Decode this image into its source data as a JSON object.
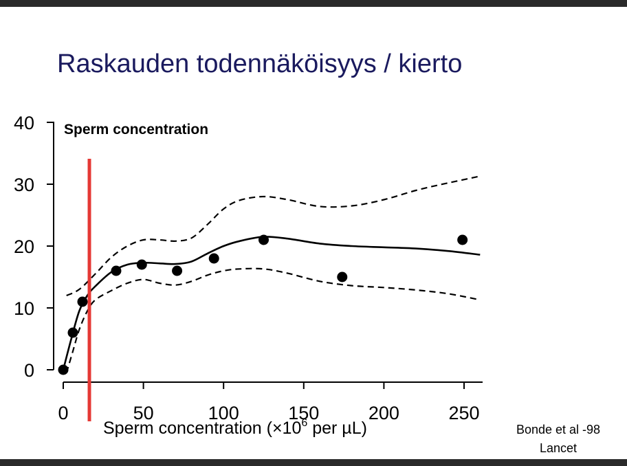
{
  "slide": {
    "title": "Raskauden todennäköisyys / kierto",
    "citation_line1": "Bonde et al -98",
    "citation_line2": "Lancet"
  },
  "chart_data": {
    "type": "scatter",
    "title": "Sperm concentration",
    "xlabel_main": "Sperm concentration (×10",
    "xlabel_sup": "6",
    "xlabel_tail": " per µL)",
    "ylabel": "",
    "xlim": [
      0,
      260
    ],
    "ylim": [
      0,
      40
    ],
    "x_ticks": [
      0,
      50,
      100,
      150,
      200,
      250
    ],
    "y_ticks": [
      0,
      10,
      20,
      30,
      40
    ],
    "grid": false,
    "series": [
      {
        "kind": "points",
        "x": [
          0,
          6,
          12,
          33,
          49,
          71,
          94,
          125,
          174,
          249
        ],
        "y": [
          0,
          6,
          11,
          16,
          17,
          16,
          18,
          21,
          15,
          21
        ],
        "color": "#000000"
      },
      {
        "kind": "fitted-curve",
        "x": [
          0,
          5,
          10,
          15,
          20,
          30,
          40,
          50,
          60,
          70,
          80,
          90,
          100,
          110,
          125,
          140,
          160,
          180,
          200,
          220,
          240,
          260
        ],
        "y": [
          0,
          5,
          9.5,
          12,
          13.5,
          15.8,
          17,
          17.3,
          17.2,
          17.1,
          17.5,
          18.8,
          20,
          20.8,
          21.5,
          21.2,
          20.4,
          20,
          19.8,
          19.6,
          19.2,
          18.6
        ],
        "color": "#000000",
        "style": "solid"
      },
      {
        "kind": "upper-ci",
        "x": [
          2,
          10,
          20,
          30,
          40,
          50,
          60,
          70,
          80,
          90,
          100,
          110,
          125,
          140,
          160,
          180,
          200,
          220,
          240,
          260
        ],
        "y": [
          12,
          13,
          15.5,
          18.2,
          20,
          21,
          21,
          20.8,
          21.3,
          23.5,
          26,
          27.4,
          28,
          27.5,
          26.4,
          26.5,
          27.5,
          29,
          30.2,
          31.3
        ],
        "color": "#000000",
        "style": "dashed"
      },
      {
        "kind": "lower-ci",
        "x": [
          2,
          6,
          10,
          15,
          20,
          30,
          40,
          50,
          60,
          70,
          80,
          90,
          100,
          110,
          125,
          140,
          160,
          180,
          200,
          220,
          240,
          260
        ],
        "y": [
          -0.5,
          3,
          6.5,
          9.5,
          11.3,
          12.8,
          14,
          14.6,
          14,
          13.7,
          14.3,
          15.3,
          16,
          16.3,
          16.3,
          15.6,
          14.3,
          13.6,
          13.3,
          12.9,
          12.3,
          11.3
        ],
        "color": "#000000",
        "style": "dashed"
      }
    ],
    "reference_line": {
      "x": 15,
      "color": "#e53935"
    }
  }
}
